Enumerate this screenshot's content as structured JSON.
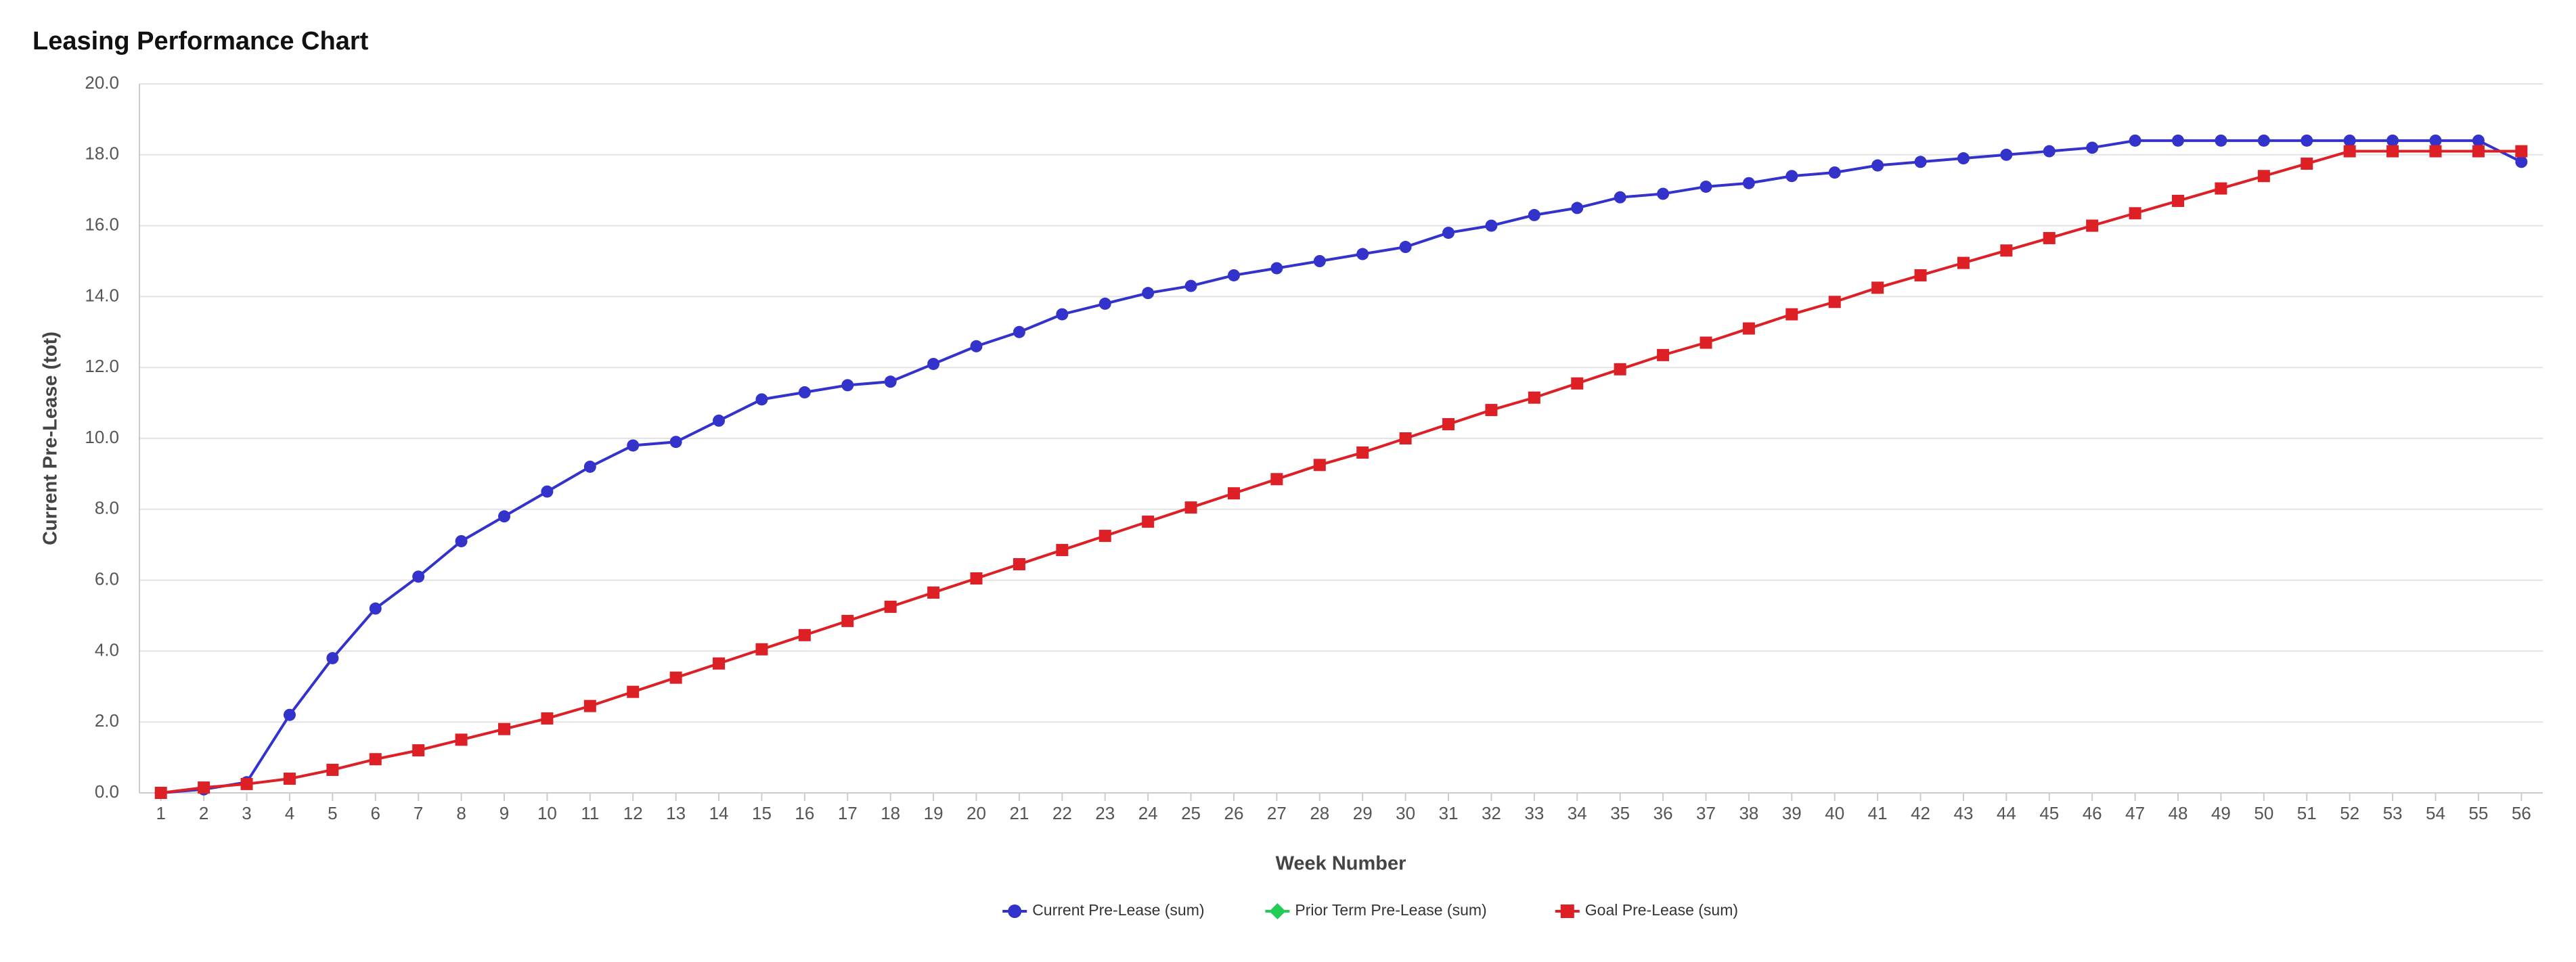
{
  "chart_data": {
    "type": "line",
    "title": "Leasing Performance Chart",
    "x_label": "Week Number",
    "y_label": "Current Pre-Lease (tot)",
    "categories": [
      "1",
      "2",
      "3",
      "4",
      "5",
      "6",
      "7",
      "8",
      "9",
      "10",
      "11",
      "12",
      "13",
      "14",
      "15",
      "16",
      "17",
      "18",
      "19",
      "20",
      "21",
      "22",
      "23",
      "24",
      "25",
      "26",
      "27",
      "28",
      "29",
      "30",
      "31",
      "32",
      "33",
      "34",
      "35",
      "36",
      "37",
      "38",
      "39",
      "40",
      "41",
      "42",
      "43",
      "44",
      "45",
      "46",
      "47",
      "48",
      "49",
      "50",
      "51",
      "52",
      "53",
      "54",
      "55",
      "56"
    ],
    "series": [
      {
        "name": "Current Pre-Lease (sum)",
        "color": "#3333cc",
        "marker": "circle",
        "values": [
          0.0,
          0.1,
          0.3,
          2.2,
          3.8,
          5.2,
          6.1,
          7.1,
          7.8,
          8.5,
          9.2,
          9.8,
          9.9,
          10.5,
          11.1,
          11.3,
          11.5,
          11.6,
          12.1,
          12.6,
          13.0,
          13.5,
          13.8,
          14.1,
          14.3,
          14.6,
          14.8,
          15.0,
          15.2,
          15.4,
          15.8,
          16.0,
          16.3,
          16.5,
          16.8,
          16.9,
          17.1,
          17.2,
          17.4,
          17.5,
          17.7,
          17.8,
          17.9,
          18.0,
          18.1,
          18.2,
          18.4,
          18.4,
          18.4,
          18.4,
          18.4,
          18.4,
          18.4,
          18.4,
          18.4,
          17.8
        ]
      },
      {
        "name": "Prior Term Pre-Lease (sum)",
        "color": "#22cc55",
        "marker": "diamond",
        "values": [
          null,
          null,
          null,
          null,
          null,
          null,
          null,
          null,
          null,
          null,
          null,
          null,
          null,
          null,
          null,
          null,
          null,
          null,
          null,
          null,
          null,
          null,
          null,
          null,
          null,
          null,
          null,
          null,
          null,
          null,
          null,
          null,
          null,
          null,
          null,
          null,
          null,
          null,
          null,
          null,
          null,
          null,
          null,
          null,
          null,
          null,
          null,
          null,
          null,
          null,
          null,
          null,
          null,
          null,
          null,
          null
        ]
      },
      {
        "name": "Goal Pre-Lease (sum)",
        "color": "#dd1f26",
        "marker": "square",
        "values": [
          0.0,
          0.15,
          0.25,
          0.4,
          0.65,
          0.95,
          1.2,
          1.5,
          1.8,
          2.1,
          2.45,
          2.85,
          3.25,
          3.65,
          4.05,
          4.45,
          4.85,
          5.25,
          5.65,
          6.05,
          6.45,
          6.85,
          7.25,
          7.65,
          8.05,
          8.45,
          8.85,
          9.25,
          9.6,
          10.0,
          10.4,
          10.8,
          11.15,
          11.55,
          11.95,
          12.35,
          12.7,
          13.1,
          13.5,
          13.85,
          14.25,
          14.6,
          14.95,
          15.3,
          15.65,
          16.0,
          16.35,
          16.7,
          17.05,
          17.4,
          17.75,
          18.1,
          18.1,
          18.1,
          18.1,
          18.1
        ]
      }
    ],
    "ylim": [
      0,
      20
    ],
    "yticks": [
      {
        "value": 0,
        "label": "0.0"
      },
      {
        "value": 2,
        "label": "2.0"
      },
      {
        "value": 4,
        "label": "4.0"
      },
      {
        "value": 6,
        "label": "6.0"
      },
      {
        "value": 8,
        "label": "8.0"
      },
      {
        "value": 10,
        "label": "10.0"
      },
      {
        "value": 12,
        "label": "12.0"
      },
      {
        "value": 14,
        "label": "14.0"
      },
      {
        "value": 16,
        "label": "16.0"
      },
      {
        "value": 18,
        "label": "18.0"
      },
      {
        "value": 20,
        "label": "20.0"
      }
    ],
    "grid": true,
    "legend": "bottom"
  }
}
